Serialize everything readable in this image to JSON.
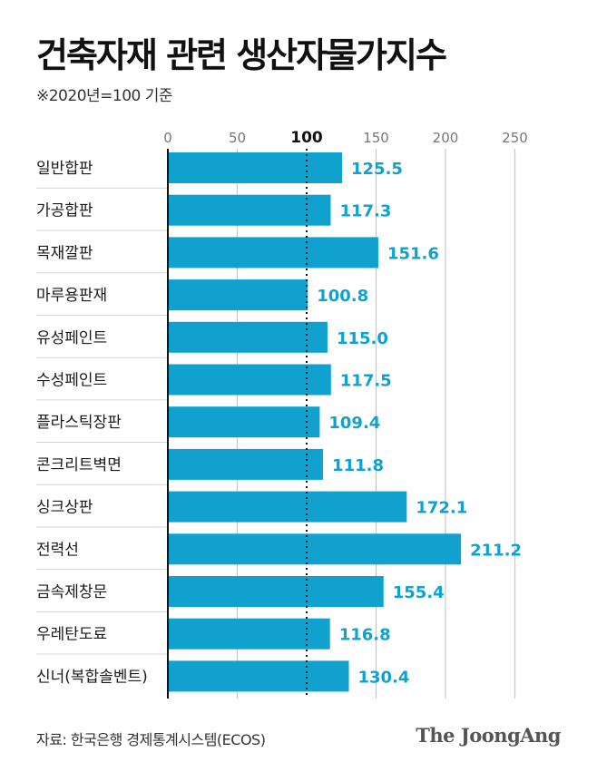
{
  "header": {
    "title": "건축자재 관련 생산자물가지수",
    "subtitle": "※2020년=100 기준"
  },
  "footer": {
    "source": "자료: 한국은행 경제통계시스템(ECOS)",
    "brand": "The JoongAng"
  },
  "colors": {
    "bar": "#10a1cf",
    "value_label": "#10a1cf",
    "grid": "#c8c8c8",
    "reference_line": "#111111"
  },
  "chart_data": {
    "type": "bar",
    "orientation": "horizontal",
    "categories": [
      "일반합판",
      "가공합판",
      "목재깔판",
      "마루용판재",
      "유성페인트",
      "수성페인트",
      "플라스틱장판",
      "콘크리트벽면",
      "싱크상판",
      "전력선",
      "금속제창문",
      "우레탄도료",
      "신너(복합솔벤트)"
    ],
    "values": [
      125.5,
      117.3,
      151.6,
      100.8,
      115.0,
      117.5,
      109.4,
      111.8,
      172.1,
      211.2,
      155.4,
      116.8,
      130.4
    ],
    "value_labels": [
      "125.5",
      "117.3",
      "151.6",
      "100.8",
      "115.0",
      "117.5",
      "109.4",
      "111.8",
      "172.1",
      "211.2",
      "155.4",
      "116.8",
      "130.4"
    ],
    "xlim": [
      0,
      250
    ],
    "xticks": [
      "0",
      "50",
      "100",
      "150",
      "200",
      "250"
    ],
    "reference_line": 100,
    "grid": true
  }
}
